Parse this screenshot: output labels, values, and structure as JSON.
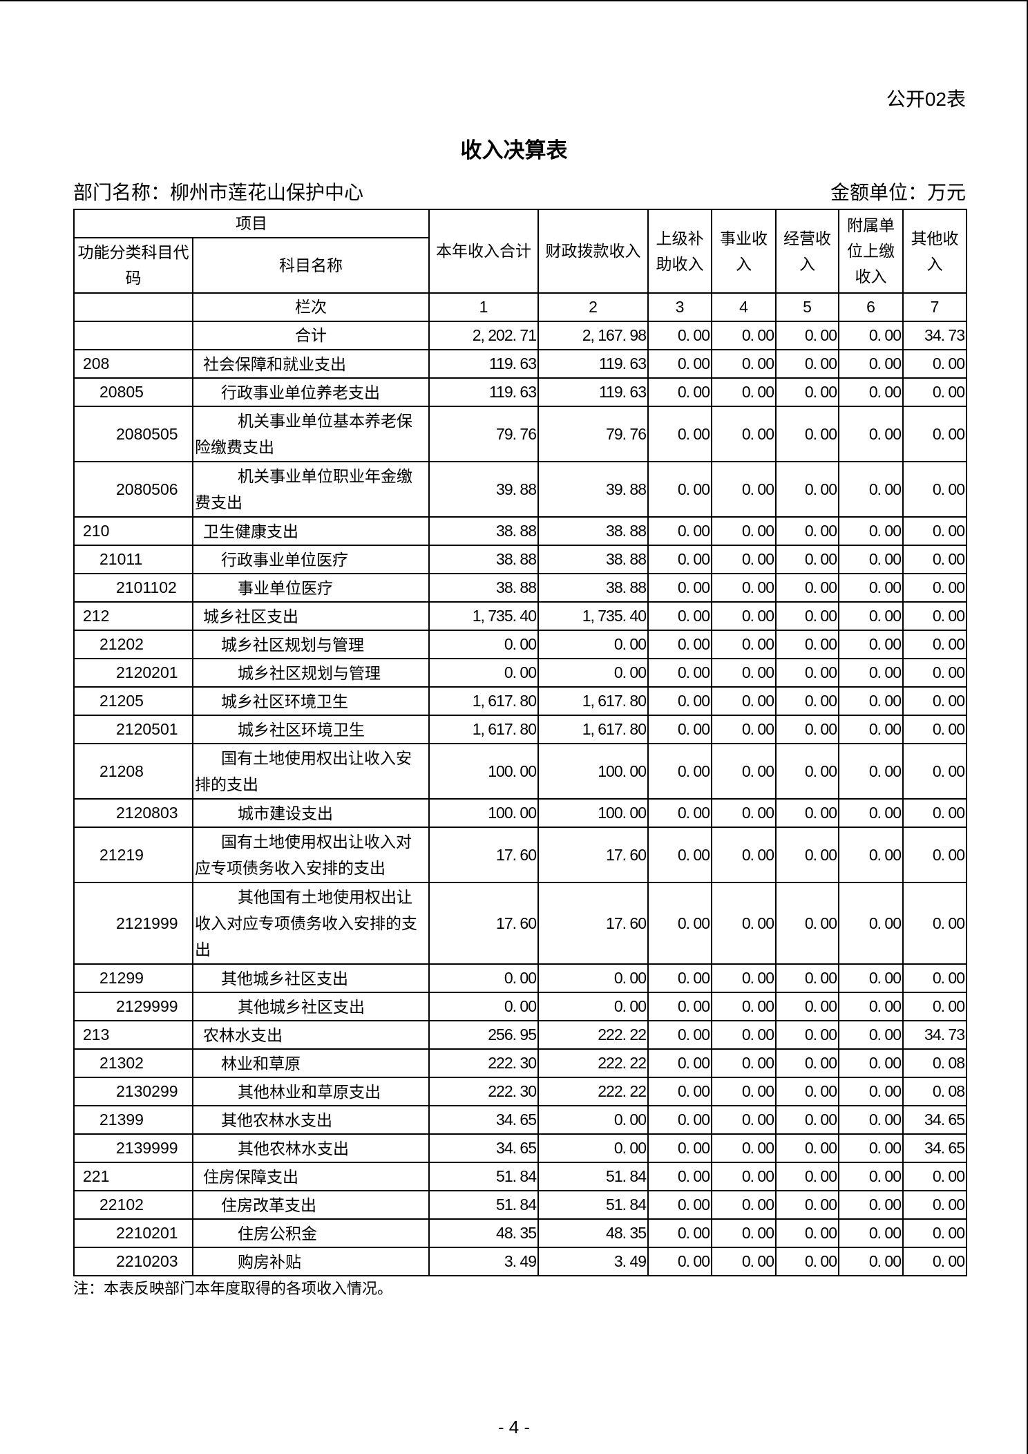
{
  "form_no": "公开02表",
  "title": "收入决算表",
  "dept": "部门名称：柳州市莲花山保护中心",
  "unit": "金额单位：万元",
  "header": {
    "item": "项目",
    "code": "功能分类科目代码",
    "name": "科目名称",
    "cols": [
      "本年收入合计",
      "财政拨款收入",
      "上级补助收入",
      "事业收入",
      "经营收入",
      "附属单位上缴收入",
      "其他收入"
    ],
    "seq_label": "栏次",
    "seq": [
      "1",
      "2",
      "3",
      "4",
      "5",
      "6",
      "7"
    ]
  },
  "total": {
    "label": "合计",
    "values": [
      "2, 202. 71",
      "2, 167. 98",
      "0. 00",
      "0. 00",
      "0. 00",
      "0. 00",
      "34. 73"
    ]
  },
  "rows": [
    {
      "code": "208",
      "name": "社会保障和就业支出",
      "level": 1,
      "h": 1,
      "values": [
        "119. 63",
        "119. 63",
        "0. 00",
        "0. 00",
        "0. 00",
        "0. 00",
        "0. 00"
      ]
    },
    {
      "code": "20805",
      "name": "行政事业单位养老支出",
      "level": 2,
      "h": 1,
      "values": [
        "119. 63",
        "119. 63",
        "0. 00",
        "0. 00",
        "0. 00",
        "0. 00",
        "0. 00"
      ]
    },
    {
      "code": "2080505",
      "name": "机关事业单位基本养老保险缴费支出",
      "level": 3,
      "h": 2,
      "values": [
        "79. 76",
        "79. 76",
        "0. 00",
        "0. 00",
        "0. 00",
        "0. 00",
        "0. 00"
      ]
    },
    {
      "code": "2080506",
      "name": "机关事业单位职业年金缴费支出",
      "level": 3,
      "h": 2,
      "values": [
        "39. 88",
        "39. 88",
        "0. 00",
        "0. 00",
        "0. 00",
        "0. 00",
        "0. 00"
      ]
    },
    {
      "code": "210",
      "name": "卫生健康支出",
      "level": 1,
      "h": 1,
      "values": [
        "38. 88",
        "38. 88",
        "0. 00",
        "0. 00",
        "0. 00",
        "0. 00",
        "0. 00"
      ]
    },
    {
      "code": "21011",
      "name": "行政事业单位医疗",
      "level": 2,
      "h": 1,
      "values": [
        "38. 88",
        "38. 88",
        "0. 00",
        "0. 00",
        "0. 00",
        "0. 00",
        "0. 00"
      ]
    },
    {
      "code": "2101102",
      "name": "事业单位医疗",
      "level": 3,
      "h": 1,
      "values": [
        "38. 88",
        "38. 88",
        "0. 00",
        "0. 00",
        "0. 00",
        "0. 00",
        "0. 00"
      ]
    },
    {
      "code": "212",
      "name": "城乡社区支出",
      "level": 1,
      "h": 1,
      "values": [
        "1, 735. 40",
        "1, 735. 40",
        "0. 00",
        "0. 00",
        "0. 00",
        "0. 00",
        "0. 00"
      ]
    },
    {
      "code": "21202",
      "name": "城乡社区规划与管理",
      "level": 2,
      "h": 1,
      "values": [
        "0. 00",
        "0. 00",
        "0. 00",
        "0. 00",
        "0. 00",
        "0. 00",
        "0. 00"
      ]
    },
    {
      "code": "2120201",
      "name": "城乡社区规划与管理",
      "level": 3,
      "h": 1,
      "values": [
        "0. 00",
        "0. 00",
        "0. 00",
        "0. 00",
        "0. 00",
        "0. 00",
        "0. 00"
      ]
    },
    {
      "code": "21205",
      "name": "城乡社区环境卫生",
      "level": 2,
      "h": 1,
      "values": [
        "1, 617. 80",
        "1, 617. 80",
        "0. 00",
        "0. 00",
        "0. 00",
        "0. 00",
        "0. 00"
      ]
    },
    {
      "code": "2120501",
      "name": "城乡社区环境卫生",
      "level": 3,
      "h": 1,
      "values": [
        "1, 617. 80",
        "1, 617. 80",
        "0. 00",
        "0. 00",
        "0. 00",
        "0. 00",
        "0. 00"
      ]
    },
    {
      "code": "21208",
      "name": "国有土地使用权出让收入安排的支出",
      "level": 2,
      "h": 2,
      "values": [
        "100. 00",
        "100. 00",
        "0. 00",
        "0. 00",
        "0. 00",
        "0. 00",
        "0. 00"
      ]
    },
    {
      "code": "2120803",
      "name": "城市建设支出",
      "level": 3,
      "h": 1,
      "values": [
        "100. 00",
        "100. 00",
        "0. 00",
        "0. 00",
        "0. 00",
        "0. 00",
        "0. 00"
      ]
    },
    {
      "code": "21219",
      "name": "国有土地使用权出让收入对应专项债务收入安排的支出",
      "level": 2,
      "h": 2,
      "values": [
        "17. 60",
        "17. 60",
        "0. 00",
        "0. 00",
        "0. 00",
        "0. 00",
        "0. 00"
      ]
    },
    {
      "code": "2121999",
      "name": "其他国有土地使用权出让收入对应专项债务收入安排的支出",
      "level": 3,
      "h": 3,
      "values": [
        "17. 60",
        "17. 60",
        "0. 00",
        "0. 00",
        "0. 00",
        "0. 00",
        "0. 00"
      ]
    },
    {
      "code": "21299",
      "name": "其他城乡社区支出",
      "level": 2,
      "h": 1,
      "values": [
        "0. 00",
        "0. 00",
        "0. 00",
        "0. 00",
        "0. 00",
        "0. 00",
        "0. 00"
      ]
    },
    {
      "code": "2129999",
      "name": "其他城乡社区支出",
      "level": 3,
      "h": 1,
      "values": [
        "0. 00",
        "0. 00",
        "0. 00",
        "0. 00",
        "0. 00",
        "0. 00",
        "0. 00"
      ]
    },
    {
      "code": "213",
      "name": "农林水支出",
      "level": 1,
      "h": 1,
      "values": [
        "256. 95",
        "222. 22",
        "0. 00",
        "0. 00",
        "0. 00",
        "0. 00",
        "34. 73"
      ]
    },
    {
      "code": "21302",
      "name": "林业和草原",
      "level": 2,
      "h": 1,
      "values": [
        "222. 30",
        "222. 22",
        "0. 00",
        "0. 00",
        "0. 00",
        "0. 00",
        "0. 08"
      ]
    },
    {
      "code": "2130299",
      "name": "其他林业和草原支出",
      "level": 3,
      "h": 1,
      "values": [
        "222. 30",
        "222. 22",
        "0. 00",
        "0. 00",
        "0. 00",
        "0. 00",
        "0. 08"
      ]
    },
    {
      "code": "21399",
      "name": "其他农林水支出",
      "level": 2,
      "h": 1,
      "values": [
        "34. 65",
        "0. 00",
        "0. 00",
        "0. 00",
        "0. 00",
        "0. 00",
        "34. 65"
      ]
    },
    {
      "code": "2139999",
      "name": "其他农林水支出",
      "level": 3,
      "h": 1,
      "values": [
        "34. 65",
        "0. 00",
        "0. 00",
        "0. 00",
        "0. 00",
        "0. 00",
        "34. 65"
      ]
    },
    {
      "code": "221",
      "name": "住房保障支出",
      "level": 1,
      "h": 1,
      "values": [
        "51. 84",
        "51. 84",
        "0. 00",
        "0. 00",
        "0. 00",
        "0. 00",
        "0. 00"
      ]
    },
    {
      "code": "22102",
      "name": "住房改革支出",
      "level": 2,
      "h": 1,
      "values": [
        "51. 84",
        "51. 84",
        "0. 00",
        "0. 00",
        "0. 00",
        "0. 00",
        "0. 00"
      ]
    },
    {
      "code": "2210201",
      "name": "住房公积金",
      "level": 3,
      "h": 1,
      "values": [
        "48. 35",
        "48. 35",
        "0. 00",
        "0. 00",
        "0. 00",
        "0. 00",
        "0. 00"
      ]
    },
    {
      "code": "2210203",
      "name": "购房补贴",
      "level": 3,
      "h": 1,
      "values": [
        "3. 49",
        "3. 49",
        "0. 00",
        "0. 00",
        "0. 00",
        "0. 00",
        "0. 00"
      ]
    }
  ],
  "note": "注：本表反映部门本年度取得的各项收入情况。",
  "page": "- 4 -"
}
